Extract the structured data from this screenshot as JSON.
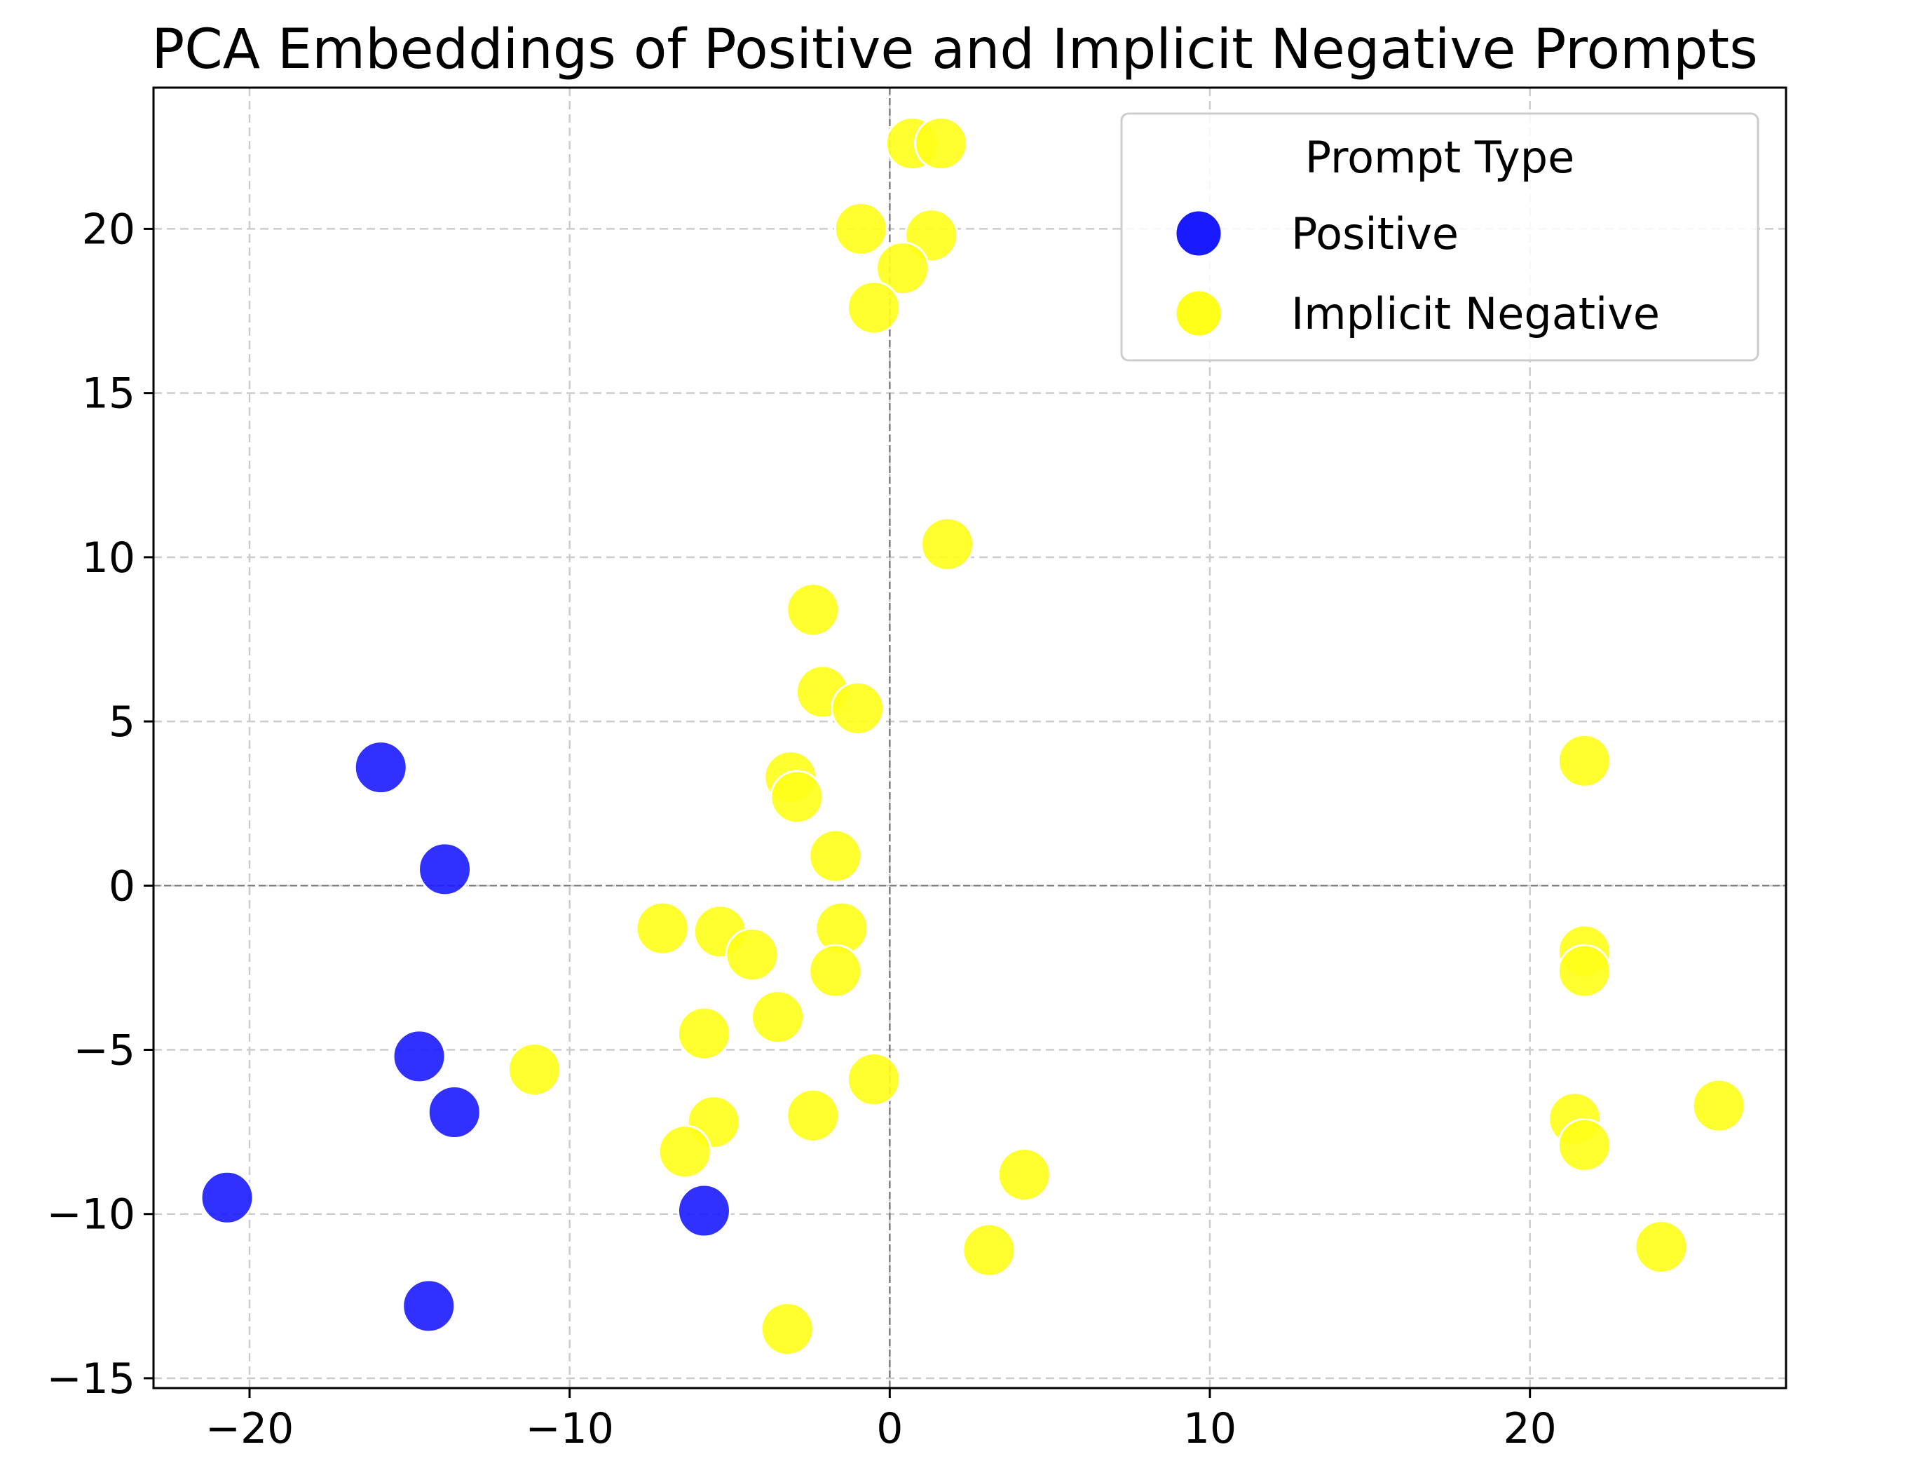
{
  "chart_data": {
    "type": "scatter",
    "title": "PCA Embeddings of Positive and Implicit Negative Prompts",
    "xlabel": "",
    "ylabel": "",
    "xlim": [
      -23,
      28
    ],
    "ylim": [
      -15.3,
      24.3
    ],
    "xticks": [
      -20,
      -10,
      0,
      10,
      20
    ],
    "yticks": [
      -15,
      -10,
      -5,
      0,
      5,
      10,
      15,
      20
    ],
    "grid": true,
    "reference_lines": {
      "x": 0,
      "y": 0
    },
    "legend": {
      "title": "Prompt Type",
      "placement": "top-right",
      "entries": [
        "Positive",
        "Implicit Negative"
      ]
    },
    "series": [
      {
        "name": "Positive",
        "color": "#1a1aff",
        "points": [
          [
            -15.9,
            3.6
          ],
          [
            -13.9,
            0.5
          ],
          [
            -14.7,
            -5.2
          ],
          [
            -13.6,
            -6.9
          ],
          [
            -20.7,
            -9.5
          ],
          [
            -5.8,
            -9.9
          ],
          [
            -14.4,
            -12.8
          ]
        ]
      },
      {
        "name": "Implicit Negative",
        "color": "#ffff1a",
        "points": [
          [
            0.7,
            22.6
          ],
          [
            1.6,
            22.6
          ],
          [
            -0.9,
            20.0
          ],
          [
            1.3,
            19.8
          ],
          [
            0.4,
            18.8
          ],
          [
            -0.5,
            17.6
          ],
          [
            1.8,
            10.4
          ],
          [
            -2.4,
            8.4
          ],
          [
            -2.1,
            5.9
          ],
          [
            -1.0,
            5.4
          ],
          [
            -3.1,
            3.3
          ],
          [
            -2.9,
            2.7
          ],
          [
            -1.7,
            0.9
          ],
          [
            -7.1,
            -1.3
          ],
          [
            -5.3,
            -1.4
          ],
          [
            -1.5,
            -1.3
          ],
          [
            -4.3,
            -2.1
          ],
          [
            -1.7,
            -2.6
          ],
          [
            -3.5,
            -4.0
          ],
          [
            -5.8,
            -4.5
          ],
          [
            -11.1,
            -5.6
          ],
          [
            -0.5,
            -5.9
          ],
          [
            -2.4,
            -7.0
          ],
          [
            -5.5,
            -7.2
          ],
          [
            -6.4,
            -8.1
          ],
          [
            4.2,
            -8.8
          ],
          [
            3.1,
            -11.1
          ],
          [
            -3.2,
            -13.5
          ],
          [
            21.7,
            3.8
          ],
          [
            21.7,
            -2.0
          ],
          [
            21.7,
            -2.6
          ],
          [
            21.4,
            -7.1
          ],
          [
            21.7,
            -7.9
          ],
          [
            25.9,
            -6.7
          ],
          [
            24.1,
            -11.0
          ]
        ]
      }
    ]
  }
}
